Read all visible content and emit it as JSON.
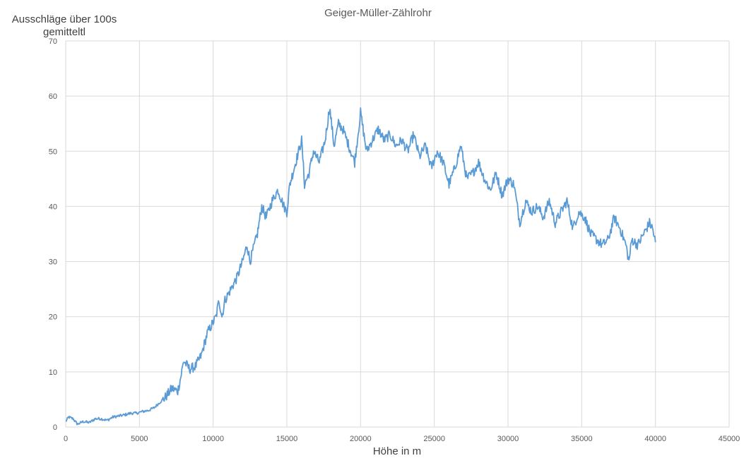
{
  "chart_data": {
    "type": "line",
    "title": "Geiger-Müller-Zählrohr",
    "ylabel_lines": [
      "Ausschläge über 100s",
      "gemitteltl"
    ],
    "xlabel": "Höhe in m",
    "xlim": [
      0,
      45000
    ],
    "ylim": [
      0,
      70
    ],
    "x_ticks": [
      0,
      5000,
      10000,
      15000,
      20000,
      25000,
      30000,
      35000,
      40000,
      45000
    ],
    "y_ticks": [
      0,
      10,
      20,
      30,
      40,
      50,
      60,
      70
    ],
    "grid": true,
    "legend": "none",
    "colors": {
      "line": "#5b9bd5",
      "grid": "#d9d9d9"
    },
    "series": [
      {
        "x": [
          0,
          200,
          500,
          800,
          1200,
          1600,
          2000,
          2400,
          2800,
          3200,
          3600,
          4000,
          4400,
          4800,
          5200,
          5600,
          6000,
          6400,
          6800,
          7200,
          7600,
          7800,
          8000,
          8400,
          8800,
          9200,
          9600,
          10000,
          10200,
          10400,
          10600,
          10800,
          11200,
          11600,
          12000,
          12300,
          12500,
          12800,
          13000,
          13300,
          13600,
          14000,
          14400,
          14800,
          15000,
          15200,
          15500,
          15800,
          16000,
          16200,
          16500,
          16800,
          17200,
          17600,
          17900,
          18200,
          18500,
          18800,
          19200,
          19600,
          20000,
          20400,
          20800,
          21200,
          21600,
          22000,
          22400,
          22800,
          23200,
          23600,
          24000,
          24400,
          24800,
          25200,
          25600,
          26000,
          26400,
          26800,
          27200,
          27600,
          28000,
          28400,
          28800,
          29200,
          29600,
          30000,
          30400,
          30800,
          31200,
          31600,
          32000,
          32400,
          32800,
          33200,
          33600,
          34000,
          34400,
          34800,
          35200,
          35600,
          36000,
          36400,
          36800,
          37200,
          37600,
          38000,
          38200,
          38400,
          38800,
          39200,
          39600,
          39800,
          40000
        ],
        "y": [
          1.0,
          1.8,
          1.5,
          0.5,
          1.0,
          0.8,
          1.5,
          1.5,
          1.2,
          1.8,
          2.0,
          2.2,
          2.5,
          2.5,
          2.8,
          3.0,
          3.5,
          4.5,
          5.5,
          7.0,
          6.5,
          9.0,
          12.0,
          10.5,
          11.0,
          13.0,
          17.0,
          19.0,
          20.0,
          23.0,
          20.0,
          23.0,
          25.0,
          27.0,
          30.0,
          33.0,
          30.0,
          33.0,
          35.0,
          40.0,
          38.0,
          41.0,
          43.0,
          40.0,
          39.0,
          44.0,
          47.0,
          50.0,
          52.0,
          44.0,
          46.0,
          50.0,
          48.0,
          52.0,
          58.0,
          51.0,
          55.0,
          54.0,
          51.0,
          48.0,
          57.0,
          50.0,
          52.0,
          54.0,
          52.0,
          53.0,
          51.0,
          52.0,
          50.0,
          53.0,
          49.0,
          51.0,
          47.0,
          50.0,
          48.0,
          44.0,
          47.0,
          51.0,
          45.0,
          46.0,
          48.0,
          45.0,
          43.0,
          46.0,
          42.0,
          45.0,
          44.0,
          37.0,
          41.0,
          39.0,
          40.0,
          38.0,
          41.0,
          37.0,
          39.0,
          41.0,
          36.0,
          39.0,
          38.0,
          35.0,
          34.0,
          33.0,
          34.0,
          38.0,
          36.0,
          33.0,
          30.0,
          34.0,
          33.0,
          35.0,
          37.0,
          36.0,
          33.5
        ]
      }
    ]
  }
}
